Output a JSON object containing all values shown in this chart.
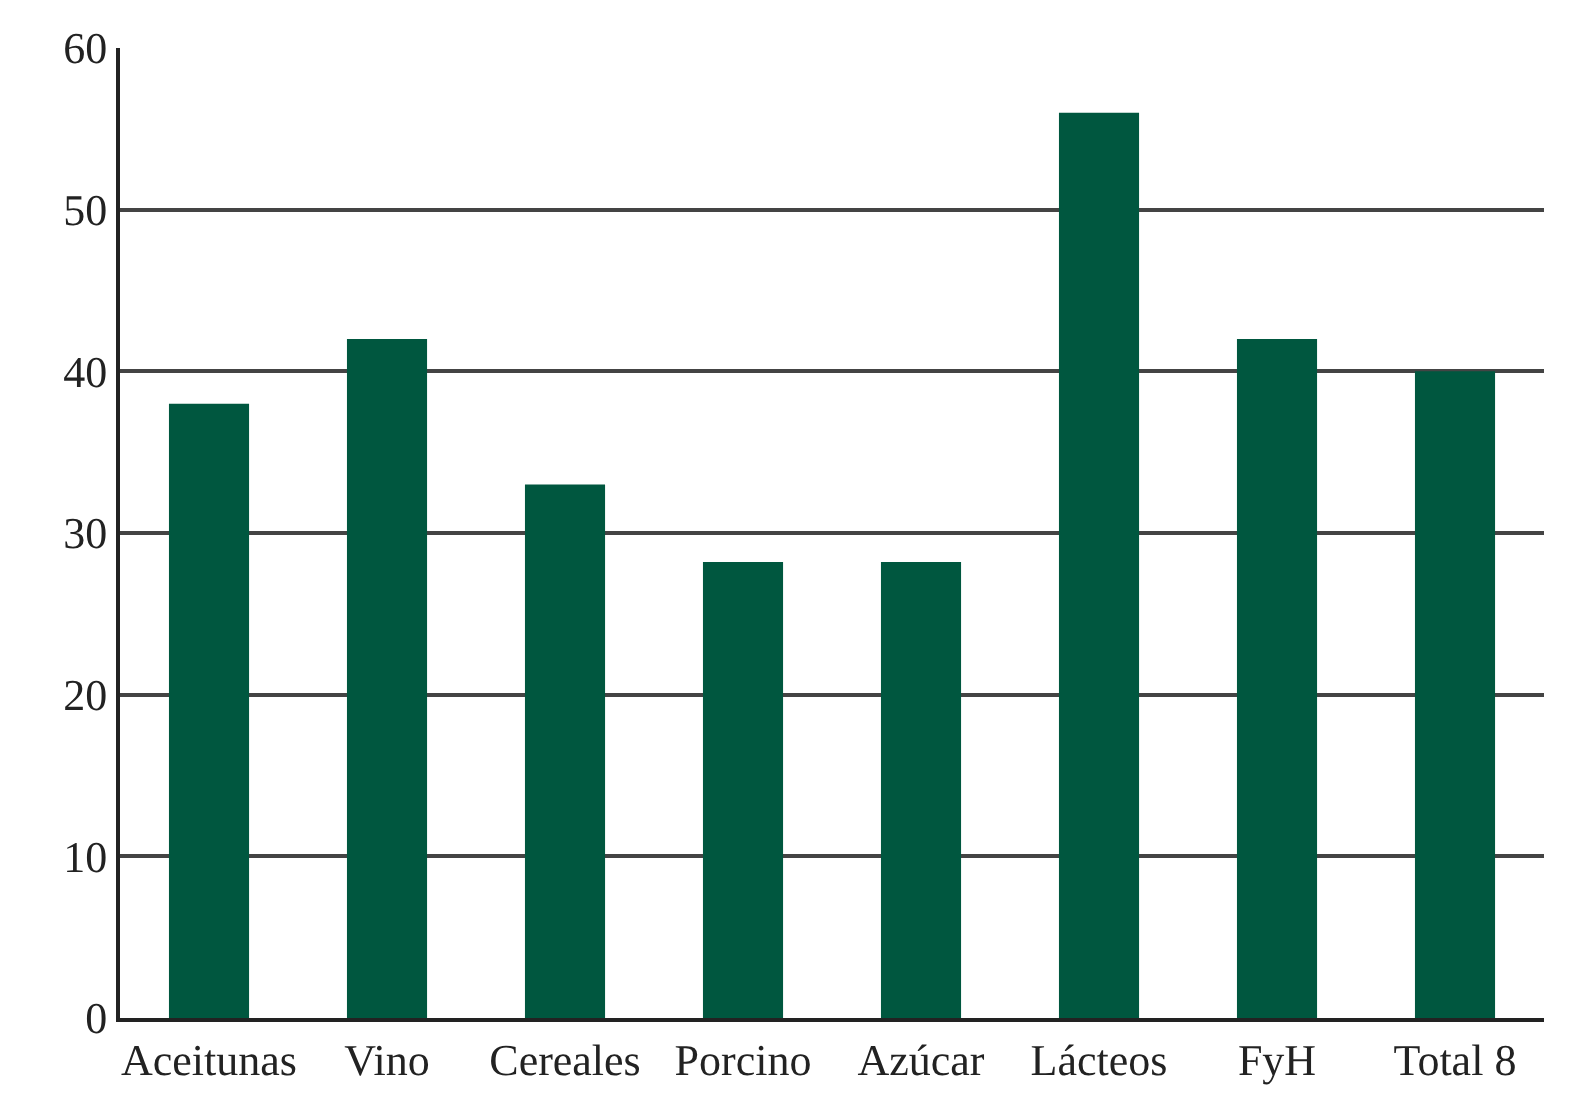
{
  "chart_data": {
    "type": "bar",
    "categories": [
      "Aceitunas",
      "Vino",
      "Cereales",
      "Porcino",
      "Azúcar",
      "Lácteos",
      "FyH",
      "Total 8"
    ],
    "values": [
      38,
      42,
      33,
      28.2,
      28.2,
      56,
      42,
      40
    ],
    "color": "#00573f",
    "ylim": [
      0,
      60
    ],
    "yticks": [
      0,
      10,
      20,
      30,
      40,
      50,
      60
    ],
    "grid": "y"
  }
}
